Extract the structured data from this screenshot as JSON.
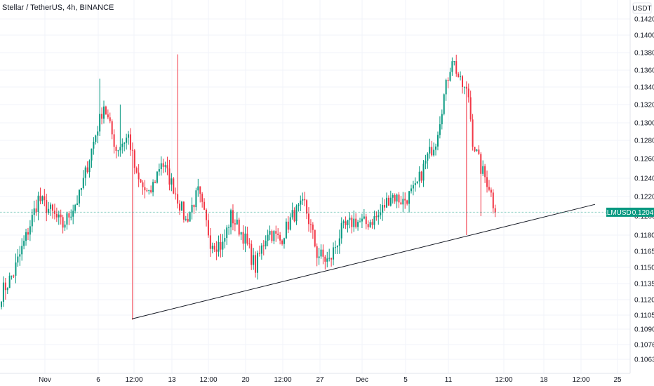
{
  "header": {
    "title": "Stellar / TetherUS, 4h, BINANCE"
  },
  "price_scale": {
    "unit": "USDT",
    "ticks": [
      "0.1420",
      "0.1400",
      "0.1380",
      "0.1360",
      "0.1340",
      "0.1320",
      "0.1300",
      "0.1280",
      "0.1260",
      "0.1240",
      "0.1220",
      "0.1200",
      "0.1180",
      "0.1165",
      "0.1150",
      "0.1135",
      "0.1120",
      "0.1105",
      "0.1090",
      "0.1076",
      "0.1063"
    ]
  },
  "time_scale": {
    "ticks": [
      "Nov",
      "6",
      "12:00",
      "13",
      "12:00",
      "20",
      "12:00",
      "27",
      "Dec",
      "5",
      "11",
      "12:00",
      "18",
      "12:00",
      "25"
    ]
  },
  "last_price": {
    "symbol": "XLMUSDT",
    "value": "0.1204"
  },
  "colors": {
    "up": "#089981",
    "down": "#f23645",
    "grid": "#f0f3fa",
    "trendline": "#131722",
    "price_line": "#089981",
    "axis_text": "#131722",
    "border": "#e0e3eb"
  },
  "chart_data": {
    "type": "candlestick",
    "title": "Stellar / TetherUS, 4h, BINANCE",
    "ylim": [
      0.1053,
      0.1432
    ],
    "grid": true,
    "last_price": 0.1204,
    "anchors": [
      {
        "i": 0,
        "p": 0.1126
      },
      {
        "i": 6,
        "p": 0.1145
      },
      {
        "i": 12,
        "p": 0.1178
      },
      {
        "i": 18,
        "p": 0.1218
      },
      {
        "i": 24,
        "p": 0.1205
      },
      {
        "i": 30,
        "p": 0.119
      },
      {
        "i": 38,
        "p": 0.122
      },
      {
        "i": 44,
        "p": 0.127
      },
      {
        "i": 50,
        "p": 0.132
      },
      {
        "i": 56,
        "p": 0.127
      },
      {
        "i": 62,
        "p": 0.1285
      },
      {
        "i": 66,
        "p": 0.124
      },
      {
        "i": 72,
        "p": 0.122
      },
      {
        "i": 78,
        "p": 0.1258
      },
      {
        "i": 84,
        "p": 0.123
      },
      {
        "i": 90,
        "p": 0.1195
      },
      {
        "i": 96,
        "p": 0.1225
      },
      {
        "i": 102,
        "p": 0.1175
      },
      {
        "i": 108,
        "p": 0.117
      },
      {
        "i": 112,
        "p": 0.12
      },
      {
        "i": 118,
        "p": 0.118
      },
      {
        "i": 124,
        "p": 0.115
      },
      {
        "i": 130,
        "p": 0.1185
      },
      {
        "i": 136,
        "p": 0.1175
      },
      {
        "i": 142,
        "p": 0.12
      },
      {
        "i": 148,
        "p": 0.1212
      },
      {
        "i": 154,
        "p": 0.1163
      },
      {
        "i": 160,
        "p": 0.1155
      },
      {
        "i": 166,
        "p": 0.1185
      },
      {
        "i": 172,
        "p": 0.1195
      },
      {
        "i": 178,
        "p": 0.1192
      },
      {
        "i": 184,
        "p": 0.12
      },
      {
        "i": 190,
        "p": 0.1222
      },
      {
        "i": 196,
        "p": 0.1215
      },
      {
        "i": 202,
        "p": 0.1228
      },
      {
        "i": 208,
        "p": 0.1262
      },
      {
        "i": 212,
        "p": 0.128
      },
      {
        "i": 216,
        "p": 0.133
      },
      {
        "i": 220,
        "p": 0.1375
      },
      {
        "i": 224,
        "p": 0.1345
      },
      {
        "i": 228,
        "p": 0.133
      },
      {
        "i": 230,
        "p": 0.128
      },
      {
        "i": 234,
        "p": 0.125
      },
      {
        "i": 238,
        "p": 0.1232
      },
      {
        "i": 241,
        "p": 0.1204
      }
    ],
    "spikes": [
      {
        "i": 64,
        "low": 0.11
      },
      {
        "i": 86,
        "high": 0.1378
      },
      {
        "i": 48,
        "high": 0.135
      },
      {
        "i": 58,
        "high": 0.132
      },
      {
        "i": 227,
        "low": 0.118
      },
      {
        "i": 234,
        "low": 0.12
      }
    ],
    "trendline": [
      {
        "date": "12:00 (Nov 9)",
        "price": 0.1101
      },
      {
        "date": "Dec 22",
        "price": 0.1212
      }
    ]
  }
}
